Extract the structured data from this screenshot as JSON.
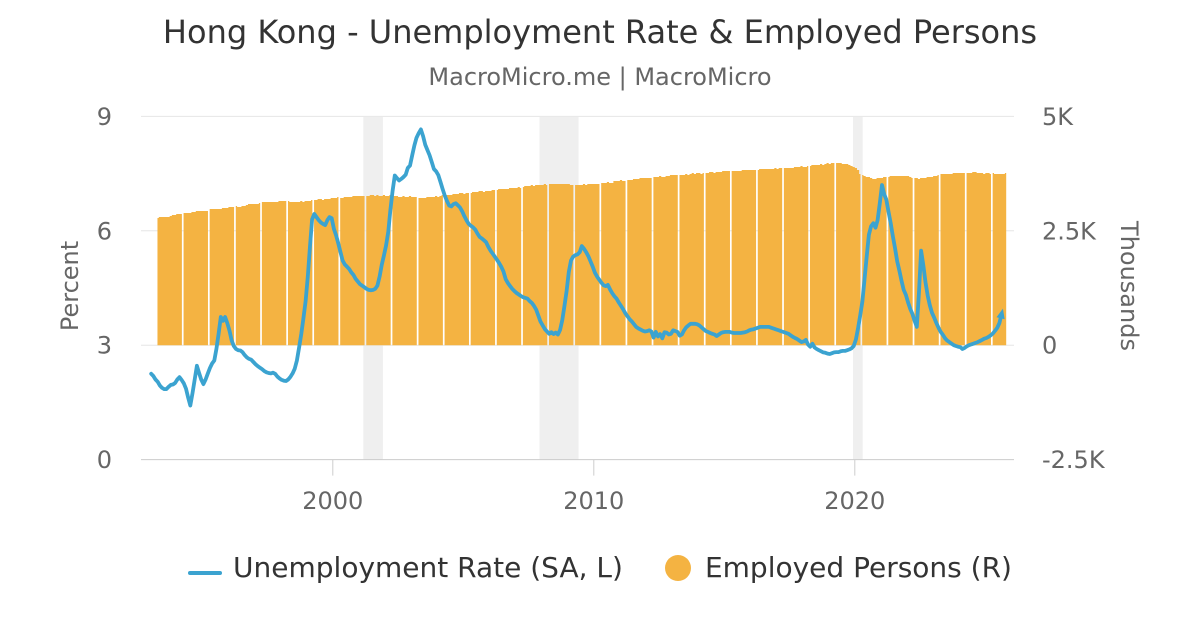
{
  "title": "Hong Kong - Unemployment Rate & Employed Persons",
  "subtitle": "MacroMicro.me | MacroMicro",
  "colors": {
    "line": "#3BA3D0",
    "column": "#F4B342",
    "band": "#EFEFEF",
    "grid": "#E6E6E6",
    "axis_line": "#CCCCCC",
    "tick": "#CCCCCC",
    "title_text": "#333333",
    "subtitle_text": "#666666",
    "axis_text": "#666666",
    "legend_text": "#333333",
    "background": "#FFFFFF"
  },
  "legend": [
    {
      "label": "Unemployment Rate (SA, L)",
      "symbol": "line",
      "color": "#3BA3D0"
    },
    {
      "label": "Employed Persons (R)",
      "symbol": "circle",
      "color": "#F4B342"
    }
  ],
  "chart_data": {
    "type": "combo",
    "title": "Hong Kong - Unemployment Rate & Employed Persons",
    "subtitle": "MacroMicro.me | MacroMicro",
    "x_axis": {
      "ticks": [
        2000,
        2010,
        2020
      ],
      "tick_labels": [
        "2000",
        "2010",
        "2020"
      ],
      "range": [
        1992.65,
        2026.1
      ],
      "plot_bands": [
        [
          2001.17,
          2001.92
        ],
        [
          2007.92,
          2009.42
        ],
        [
          2019.93,
          2020.3
        ]
      ]
    },
    "y_left": {
      "title": "Percent",
      "ticks": [
        0,
        3,
        6,
        9
      ],
      "tick_labels": [
        "0",
        "3",
        "6",
        "9"
      ],
      "range": [
        0,
        9
      ]
    },
    "y_right": {
      "title": "Thousands",
      "ticks": [
        -2500,
        0,
        2500,
        5000
      ],
      "tick_labels": [
        "-2.5K",
        "0",
        "2.5K",
        "5K"
      ],
      "range": [
        -2500,
        5000
      ]
    },
    "series": [
      {
        "name": "Unemployment Rate (SA, L)",
        "type": "line",
        "axis": "left",
        "color": "#3BA3D0",
        "start_year": 1993,
        "start_month": 1,
        "unit": "percent",
        "values": [
          2.25,
          2.19,
          2.1,
          2.04,
          1.94,
          1.88,
          1.85,
          1.85,
          1.91,
          1.96,
          1.97,
          2.01,
          2.1,
          2.16,
          2.09,
          2.0,
          1.86,
          1.62,
          1.42,
          1.74,
          2.1,
          2.46,
          2.28,
          2.1,
          1.98,
          2.1,
          2.25,
          2.4,
          2.52,
          2.6,
          2.9,
          3.3,
          3.74,
          3.64,
          3.74,
          3.58,
          3.38,
          3.12,
          2.98,
          2.9,
          2.87,
          2.86,
          2.82,
          2.74,
          2.68,
          2.64,
          2.62,
          2.56,
          2.5,
          2.45,
          2.41,
          2.37,
          2.32,
          2.29,
          2.27,
          2.26,
          2.28,
          2.25,
          2.18,
          2.13,
          2.09,
          2.07,
          2.06,
          2.1,
          2.17,
          2.26,
          2.38,
          2.6,
          2.94,
          3.3,
          3.7,
          4.15,
          4.8,
          5.6,
          6.3,
          6.44,
          6.36,
          6.28,
          6.22,
          6.18,
          6.15,
          6.28,
          6.36,
          6.33,
          6.05,
          5.88,
          5.68,
          5.45,
          5.22,
          5.12,
          5.06,
          5.0,
          4.91,
          4.84,
          4.74,
          4.67,
          4.6,
          4.56,
          4.52,
          4.48,
          4.45,
          4.44,
          4.45,
          4.48,
          4.56,
          4.8,
          5.1,
          5.35,
          5.62,
          5.98,
          6.55,
          7.05,
          7.45,
          7.38,
          7.32,
          7.36,
          7.41,
          7.47,
          7.65,
          7.71,
          7.98,
          8.24,
          8.44,
          8.56,
          8.66,
          8.48,
          8.26,
          8.12,
          7.98,
          7.8,
          7.62,
          7.56,
          7.46,
          7.28,
          7.1,
          6.92,
          6.78,
          6.66,
          6.64,
          6.7,
          6.72,
          6.67,
          6.61,
          6.51,
          6.38,
          6.27,
          6.18,
          6.13,
          6.09,
          6.03,
          5.93,
          5.84,
          5.8,
          5.75,
          5.7,
          5.58,
          5.48,
          5.4,
          5.32,
          5.24,
          5.15,
          5.05,
          4.93,
          4.73,
          4.63,
          4.55,
          4.48,
          4.42,
          4.37,
          4.33,
          4.29,
          4.26,
          4.24,
          4.22,
          4.16,
          4.11,
          4.03,
          3.93,
          3.78,
          3.62,
          3.52,
          3.42,
          3.36,
          3.3,
          3.34,
          3.29,
          3.33,
          3.28,
          3.4,
          3.66,
          4.02,
          4.42,
          4.92,
          5.22,
          5.32,
          5.36,
          5.38,
          5.44,
          5.6,
          5.53,
          5.44,
          5.33,
          5.2,
          5.06,
          4.9,
          4.8,
          4.72,
          4.64,
          4.57,
          4.55,
          4.58,
          4.46,
          4.36,
          4.28,
          4.22,
          4.12,
          4.03,
          3.94,
          3.84,
          3.76,
          3.68,
          3.62,
          3.55,
          3.48,
          3.44,
          3.41,
          3.38,
          3.36,
          3.37,
          3.39,
          3.36,
          3.2,
          3.35,
          3.23,
          3.29,
          3.18,
          3.34,
          3.33,
          3.28,
          3.3,
          3.39,
          3.37,
          3.35,
          3.25,
          3.28,
          3.39,
          3.47,
          3.52,
          3.56,
          3.56,
          3.56,
          3.55,
          3.52,
          3.47,
          3.42,
          3.37,
          3.35,
          3.32,
          3.3,
          3.28,
          3.24,
          3.28,
          3.32,
          3.34,
          3.35,
          3.35,
          3.35,
          3.33,
          3.32,
          3.32,
          3.32,
          3.32,
          3.33,
          3.34,
          3.36,
          3.39,
          3.41,
          3.42,
          3.44,
          3.46,
          3.48,
          3.48,
          3.48,
          3.48,
          3.48,
          3.46,
          3.44,
          3.42,
          3.4,
          3.38,
          3.36,
          3.34,
          3.32,
          3.3,
          3.26,
          3.22,
          3.19,
          3.16,
          3.12,
          3.08,
          3.1,
          3.14,
          3.02,
          2.96,
          3.04,
          2.94,
          2.9,
          2.87,
          2.84,
          2.81,
          2.8,
          2.78,
          2.77,
          2.79,
          2.81,
          2.82,
          2.82,
          2.84,
          2.85,
          2.85,
          2.87,
          2.89,
          2.92,
          2.98,
          3.15,
          3.45,
          3.78,
          4.15,
          4.75,
          5.35,
          5.9,
          6.12,
          6.2,
          6.08,
          6.28,
          6.72,
          7.2,
          6.96,
          6.82,
          6.5,
          6.2,
          5.85,
          5.55,
          5.2,
          4.95,
          4.68,
          4.45,
          4.32,
          4.12,
          3.95,
          3.82,
          3.64,
          3.48,
          4.4,
          5.48,
          5.1,
          4.65,
          4.3,
          4.05,
          3.85,
          3.72,
          3.58,
          3.46,
          3.35,
          3.27,
          3.18,
          3.12,
          3.08,
          3.04,
          3.0,
          2.98,
          2.96,
          2.95,
          2.9,
          2.93,
          2.97,
          3.0,
          3.02,
          3.04,
          3.06,
          3.08,
          3.11,
          3.14,
          3.17,
          3.19,
          3.22,
          3.26,
          3.31,
          3.38,
          3.46,
          3.58,
          3.82
        ],
        "end_arrow": true
      },
      {
        "name": "Employed Persons (R)",
        "type": "column",
        "axis": "right",
        "color": "#F4B342",
        "start_year": 1993,
        "start_month": 4,
        "unit": "thousands",
        "values": [
          2787,
          2800,
          2793,
          2799,
          2809,
          2810,
          2834,
          2854,
          2853,
          2865,
          2871,
          2864,
          2879,
          2886,
          2881,
          2896,
          2905,
          2907,
          2928,
          2934,
          2927,
          2939,
          2942,
          2943,
          2967,
          2972,
          2969,
          2979,
          2976,
          2975,
          2997,
          3001,
          3004,
          3019,
          3016,
          3016,
          3033,
          3029,
          3031,
          3046,
          3047,
          3058,
          3081,
          3079,
          3082,
          3092,
          3086,
          3097,
          3120,
          3119,
          3127,
          3136,
          3123,
          3127,
          3138,
          3131,
          3142,
          3152,
          3143,
          3150,
          3154,
          3136,
          3137,
          3137,
          3123,
          3133,
          3142,
          3138,
          3151,
          3152,
          3144,
          3163,
          3176,
          3176,
          3193,
          3193,
          3184,
          3197,
          3200,
          3197,
          3215,
          3216,
          3213,
          3229,
          3227,
          3220,
          3233,
          3229,
          3228,
          3249,
          3251,
          3251,
          3264,
          3254,
          3250,
          3267,
          3265,
          3268,
          3283,
          3273,
          3269,
          3276,
          3262,
          3261,
          3273,
          3265,
          3266,
          3273,
          3256,
          3252,
          3256,
          3242,
          3246,
          3256,
          3245,
          3249,
          3254,
          3237,
          3235,
          3231,
          3211,
          3215,
          3220,
          3215,
          3232,
          3242,
          3232,
          3243,
          3252,
          3245,
          3264,
          3275,
          3274,
          3291,
          3292,
          3281,
          3296,
          3303,
          3303,
          3323,
          3323,
          3314,
          3326,
          3325,
          3325,
          3345,
          3347,
          3345,
          3361,
          3359,
          3358,
          3374,
          3370,
          3369,
          3389,
          3391,
          3397,
          3414,
          3406,
          3403,
          3417,
          3415,
          3426,
          3446,
          3440,
          3441,
          3452,
          3446,
          3456,
          3474,
          3470,
          3478,
          3491,
          3484,
          3493,
          3503,
          3493,
          3501,
          3512,
          3507,
          3521,
          3528,
          3516,
          3522,
          3525,
          3516,
          3529,
          3532,
          3516,
          3517,
          3508,
          3491,
          3500,
          3500,
          3493,
          3508,
          3512,
          3508,
          3523,
          3521,
          3513,
          3526,
          3527,
          3529,
          3551,
          3552,
          3548,
          3558,
          3553,
          3555,
          3578,
          3582,
          3586,
          3600,
          3594,
          3595,
          3612,
          3608,
          3612,
          3628,
          3625,
          3633,
          3650,
          3643,
          3646,
          3655,
          3648,
          3660,
          3679,
          3675,
          3682,
          3688,
          3676,
          3686,
          3700,
          3696,
          3710,
          3719,
          3709,
          3719,
          3725,
          3716,
          3727,
          3734,
          3729,
          3746,
          3755,
          3747,
          3757,
          3756,
          3748,
          3766,
          3774,
          3771,
          3786,
          3783,
          3773,
          3787,
          3788,
          3786,
          3804,
          3803,
          3798,
          3812,
          3807,
          3800,
          3813,
          3809,
          3809,
          3828,
          3825,
          3824,
          3835,
          3823,
          3821,
          3837,
          3835,
          3840,
          3855,
          3844,
          3844,
          3854,
          3844,
          3849,
          3864,
          3856,
          3863,
          3875,
          3865,
          3870,
          3878,
          3867,
          3878,
          3894,
          3890,
          3902,
          3909,
          3895,
          3905,
          3917,
          3916,
          3935,
          3946,
          3936,
          3948,
          3954,
          3948,
          3965,
          3972,
          3966,
          3982,
          3985,
          3976,
          3986,
          3978,
          3956,
          3957,
          3952,
          3933,
          3922,
          3897,
          3873,
          3820,
          3751,
          3728,
          3706,
          3682,
          3667,
          3659,
          3639,
          3635,
          3650,
          3646,
          3647,
          3668,
          3670,
          3679,
          3697,
          3689,
          3688,
          3699,
          3690,
          3695,
          3707,
          3695,
          3693,
          3683,
          3649,
          3643,
          3652,
          3641,
          3646,
          3653,
          3647,
          3665,
          3682,
          3680,
          3692,
          3707,
          3711,
          3734,
          3748,
          3741,
          3749,
          3752,
          3745,
          3762,
          3769,
          3761,
          3771,
          3769,
          3758,
          3771,
          3773,
          3769,
          3784,
          3779,
          3766,
          3771,
          3759,
          3748,
          3760,
          3754,
          3747,
          3757,
          3747,
          3740,
          3750,
          3743,
          3741,
          3755
        ],
        "year_gap_phase": 0.25
      }
    ],
    "grid": "horizontal",
    "legend_position": "bottom"
  }
}
